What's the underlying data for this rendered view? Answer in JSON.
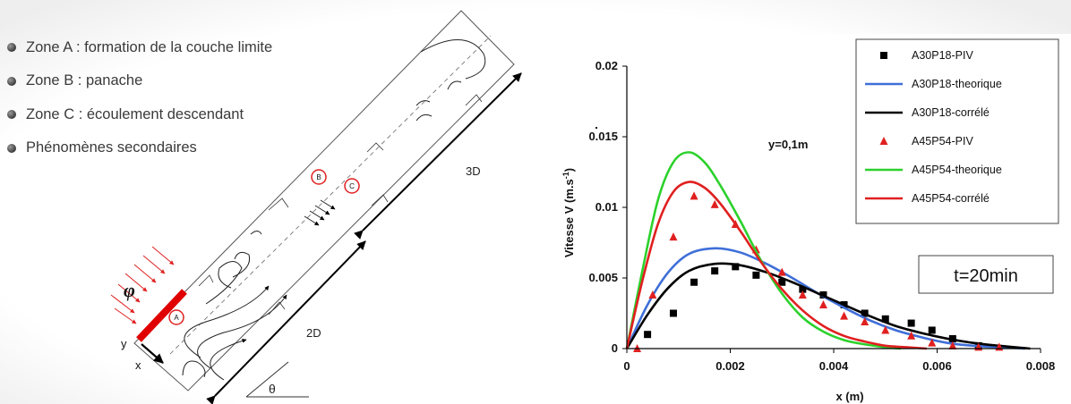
{
  "bullets": [
    "Zone A : formation de la couche limite",
    "Zone B : panache",
    "Zone C : écoulement descendant",
    "Phénomènes secondaires"
  ],
  "schema": {
    "flux_symbol": "φ",
    "zone_a": "A",
    "zone_b": "B",
    "zone_c": "C",
    "dim_3d": "3D",
    "dim_2d": "2D",
    "axis_x": "x",
    "axis_y": "y",
    "angle": "θ"
  },
  "chart_data": {
    "type": "scatter",
    "xlabel": "x (m)",
    "ylabel": "Vitesse V (m.s-1)",
    "ylabel_main": "Vitesse V (m.s",
    "ylabel_sup": "-1",
    "ylabel_end": ")",
    "xlim": [
      0,
      0.008
    ],
    "ylim": [
      0,
      0.02
    ],
    "xticks": [
      "0",
      "0.002",
      "0.004",
      "0.006",
      "0.008"
    ],
    "yticks": [
      "0",
      "0.005",
      "0.01",
      "0.015",
      "0.02"
    ],
    "grid": false,
    "legend_position": "top-right",
    "annotations": [
      "y=0,1m",
      "t=20min"
    ],
    "series": [
      {
        "name": "A30P18-PIV",
        "kind": "markers",
        "marker": "square",
        "color": "#000000",
        "x": [
          0.0004,
          0.0009,
          0.0013,
          0.0017,
          0.0021,
          0.0025,
          0.003,
          0.0034,
          0.0038,
          0.0042,
          0.0046,
          0.005,
          0.0055,
          0.0059,
          0.0063,
          0.0068
        ],
        "y": [
          0.001,
          0.0025,
          0.0047,
          0.0055,
          0.0058,
          0.0052,
          0.0047,
          0.0042,
          0.0038,
          0.0031,
          0.0025,
          0.0021,
          0.0018,
          0.0013,
          0.0007,
          0.0002
        ]
      },
      {
        "name": "A30P18-theorique",
        "kind": "line",
        "color": "#3f6fd8",
        "x": [
          0,
          0.0004,
          0.0008,
          0.0012,
          0.0017,
          0.0022,
          0.0027,
          0.0032,
          0.0037,
          0.0042,
          0.0047,
          0.0052,
          0.0057,
          0.0062,
          0.0067,
          0.0072,
          0.0077
        ],
        "y": [
          0,
          0.0031,
          0.0054,
          0.0067,
          0.0071,
          0.0068,
          0.006,
          0.005,
          0.0039,
          0.0029,
          0.002,
          0.0013,
          0.0008,
          0.0004,
          0.0002,
          0.0001,
          0
        ]
      },
      {
        "name": "A30P18-corrélé",
        "kind": "line",
        "color": "#000000",
        "x": [
          0,
          0.0004,
          0.0008,
          0.0012,
          0.0017,
          0.0022,
          0.0027,
          0.0032,
          0.0037,
          0.0042,
          0.0047,
          0.0052,
          0.0057,
          0.0062,
          0.0067,
          0.0072,
          0.0078
        ],
        "y": [
          0,
          0.0024,
          0.0043,
          0.0055,
          0.006,
          0.0059,
          0.0054,
          0.0047,
          0.0039,
          0.0031,
          0.0023,
          0.0016,
          0.0011,
          0.0007,
          0.0004,
          0.0002,
          0
        ]
      },
      {
        "name": "A45P54-PIV",
        "kind": "markers",
        "marker": "triangle",
        "color": "#e02020",
        "x": [
          0.0002,
          0.0005,
          0.0009,
          0.0013,
          0.0017,
          0.0021,
          0.0025,
          0.003,
          0.0034,
          0.0038,
          0.0042,
          0.0046,
          0.005,
          0.0055,
          0.0059,
          0.0063,
          0.0068,
          0.0072
        ],
        "y": [
          0,
          0.0038,
          0.0079,
          0.0108,
          0.0102,
          0.0088,
          0.007,
          0.0054,
          0.0038,
          0.0031,
          0.0023,
          0.0019,
          0.0013,
          0.0009,
          0.0004,
          0.0002,
          0.0001,
          0.0001
        ]
      },
      {
        "name": "A45P54-theorique",
        "kind": "line",
        "color": "#2cd12c",
        "x": [
          0,
          0.0003,
          0.0006,
          0.0009,
          0.0012,
          0.0015,
          0.0018,
          0.0022,
          0.0026,
          0.003,
          0.0034,
          0.0038,
          0.0042,
          0.0046,
          0.005,
          0.0053
        ],
        "y": [
          0,
          0.0055,
          0.0105,
          0.0132,
          0.0139,
          0.0132,
          0.0116,
          0.009,
          0.0062,
          0.0039,
          0.0022,
          0.0012,
          0.0006,
          0.0003,
          0.0001,
          0
        ]
      },
      {
        "name": "A45P54-corrélé",
        "kind": "line",
        "color": "#e02020",
        "x": [
          0,
          0.0003,
          0.0006,
          0.0009,
          0.0012,
          0.0015,
          0.0018,
          0.0022,
          0.0026,
          0.003,
          0.0034,
          0.0038,
          0.0042,
          0.0046,
          0.005,
          0.0054,
          0.0058
        ],
        "y": [
          0,
          0.0048,
          0.0088,
          0.0111,
          0.0118,
          0.0114,
          0.0103,
          0.0083,
          0.0061,
          0.0042,
          0.0027,
          0.0016,
          0.0009,
          0.0005,
          0.0002,
          0.0001,
          0
        ]
      }
    ]
  }
}
